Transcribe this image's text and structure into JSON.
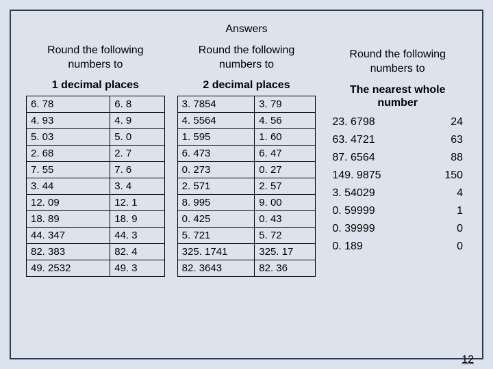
{
  "title": "Answers",
  "page_number": "12",
  "background_color": "#dce3ed",
  "border_color": "#2a3a5a",
  "col1": {
    "header_line1": "Round the following",
    "header_line2": "numbers to",
    "subheader": "1 decimal places",
    "rows": [
      [
        "6. 78",
        "6. 8"
      ],
      [
        "4. 93",
        "4. 9"
      ],
      [
        "5. 03",
        "5. 0"
      ],
      [
        "2. 68",
        "2. 7"
      ],
      [
        "7. 55",
        "7. 6"
      ],
      [
        "3. 44",
        "3. 4"
      ],
      [
        "12. 09",
        "12. 1"
      ],
      [
        "18. 89",
        "18. 9"
      ],
      [
        "44. 347",
        "44. 3"
      ],
      [
        "82. 383",
        "82. 4"
      ],
      [
        "49. 2532",
        "49. 3"
      ]
    ]
  },
  "col2": {
    "header_line1": "Round the following",
    "header_line2": "numbers to",
    "subheader": "2 decimal places",
    "rows": [
      [
        "3. 7854",
        "3. 79"
      ],
      [
        "4. 5564",
        "4. 56"
      ],
      [
        "1. 595",
        "1. 60"
      ],
      [
        "6. 473",
        "6. 47"
      ],
      [
        "0. 273",
        "0. 27"
      ],
      [
        "2. 571",
        "2. 57"
      ],
      [
        "8. 995",
        "9. 00"
      ],
      [
        "0. 425",
        "0. 43"
      ],
      [
        "5. 721",
        "5. 72"
      ],
      [
        "325. 1741",
        "325. 17"
      ],
      [
        "82. 3643",
        "82. 36"
      ]
    ]
  },
  "col3": {
    "header_line1": "Round the following",
    "header_line2": "numbers to",
    "subheader_line1": "The nearest whole",
    "subheader_line2": "number",
    "rows": [
      [
        "23. 6798",
        "24"
      ],
      [
        "63. 4721",
        "63"
      ],
      [
        "87. 6564",
        "88"
      ],
      [
        "149. 9875",
        "150"
      ],
      [
        "3. 54029",
        "4"
      ],
      [
        "0. 59999",
        "1"
      ],
      [
        "0. 39999",
        "0"
      ],
      [
        "0. 189",
        "0"
      ]
    ]
  }
}
